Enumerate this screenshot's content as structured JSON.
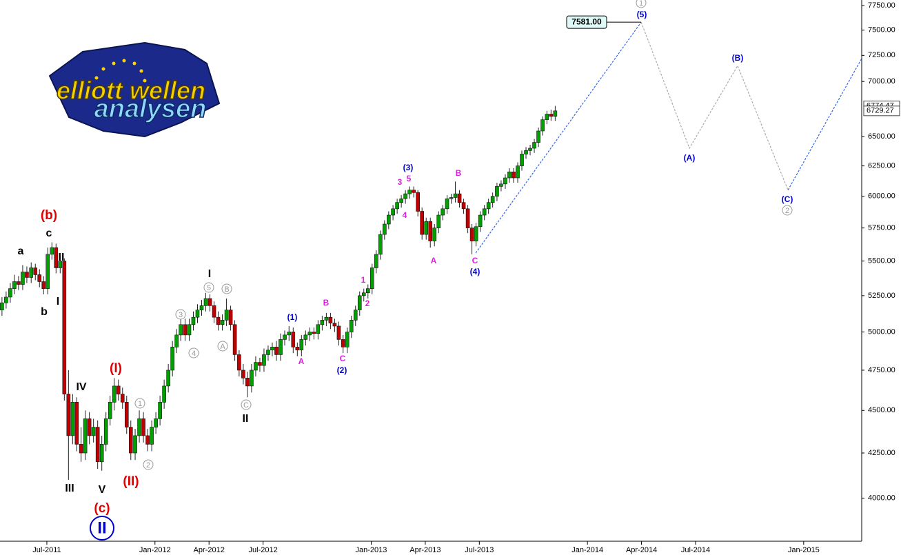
{
  "chart_data": {
    "type": "candlestick",
    "log_scale": true,
    "xlim": [
      3.4,
      51.22
    ],
    "ylim": [
      3775,
      7810
    ],
    "xticks": [
      {
        "value": 6,
        "label": "Jul-2011"
      },
      {
        "value": 12,
        "label": "Jan-2012"
      },
      {
        "value": 15,
        "label": "Apr-2012"
      },
      {
        "value": 18,
        "label": "Jul-2012"
      },
      {
        "value": 24,
        "label": "Jan-2013"
      },
      {
        "value": 27,
        "label": "Apr-2013"
      },
      {
        "value": 30,
        "label": "Jul-2013"
      },
      {
        "value": 36,
        "label": "Jan-2014"
      },
      {
        "value": 39,
        "label": "Apr-2014"
      },
      {
        "value": 42,
        "label": "Jul-2014"
      },
      {
        "value": 48,
        "label": "Jan-2015"
      }
    ],
    "yticks": [
      {
        "value": 4000,
        "label": "4000.00"
      },
      {
        "value": 4250,
        "label": "4250.00"
      },
      {
        "value": 4500,
        "label": "4500.00"
      },
      {
        "value": 4750,
        "label": "4750.00"
      },
      {
        "value": 5000,
        "label": "5000.00"
      },
      {
        "value": 5250,
        "label": "5250.00"
      },
      {
        "value": 5500,
        "label": "5500.00"
      },
      {
        "value": 5750,
        "label": "5750.00"
      },
      {
        "value": 6000,
        "label": "6000.00"
      },
      {
        "value": 6250,
        "label": "6250.00"
      },
      {
        "value": 6500,
        "label": "6500.00"
      },
      {
        "value": 7000,
        "label": "7000.00"
      },
      {
        "value": 7250,
        "label": "7250.00"
      },
      {
        "value": 7500,
        "label": "7500.00"
      },
      {
        "value": 7750,
        "label": "7750.00"
      }
    ],
    "up_color": "#00a000",
    "down_color": "#c00000",
    "x": [
      3.51,
      3.74,
      3.97,
      4.2,
      4.43,
      4.66,
      4.89,
      5.13,
      5.36,
      5.59,
      5.82,
      6.05,
      6.28,
      6.51,
      6.74,
      6.97,
      7.2,
      7.43,
      7.66,
      7.9,
      8.13,
      8.36,
      8.59,
      8.82,
      9.05,
      9.28,
      9.51,
      9.74,
      9.97,
      10.2,
      10.43,
      10.66,
      10.9,
      11.13,
      11.36,
      11.59,
      11.82,
      12.05,
      12.28,
      12.51,
      12.74,
      12.97,
      13.2,
      13.43,
      13.67,
      13.9,
      14.13,
      14.36,
      14.59,
      14.82,
      15.05,
      15.28,
      15.51,
      15.74,
      15.97,
      16.2,
      16.43,
      16.67,
      16.9,
      17.13,
      17.36,
      17.59,
      17.82,
      18.05,
      18.28,
      18.51,
      18.74,
      18.97,
      19.2,
      19.44,
      19.67,
      19.9,
      20.13,
      20.36,
      20.59,
      20.82,
      21.05,
      21.28,
      21.51,
      21.74,
      21.97,
      22.2,
      22.44,
      22.67,
      22.9,
      23.13,
      23.36,
      23.59,
      23.82,
      24.05,
      24.28,
      24.51,
      24.74,
      24.97,
      25.21,
      25.44,
      25.67,
      25.9,
      26.13,
      26.36,
      26.59,
      26.82,
      27.05,
      27.28,
      27.51,
      27.74,
      27.97,
      28.21,
      28.44,
      28.67,
      28.9,
      29.13,
      29.36,
      29.59,
      29.82,
      30.05,
      30.28,
      30.51,
      30.74,
      30.98,
      31.21,
      31.44,
      31.67,
      31.9,
      32.13,
      32.36,
      32.59,
      32.82,
      33.05,
      33.28,
      33.51,
      33.75,
      33.98,
      34.21
    ],
    "open": [
      5150,
      5200,
      5240,
      5300,
      5350,
      5330,
      5420,
      5380,
      5450,
      5400,
      5350,
      5300,
      5550,
      5600,
      5450,
      5500,
      4600,
      4350,
      4550,
      4300,
      4250,
      4450,
      4350,
      4400,
      4200,
      4300,
      4450,
      4550,
      4650,
      4600,
      4550,
      4400,
      4250,
      4350,
      4450,
      4350,
      4300,
      4400,
      4450,
      4550,
      4650,
      4750,
      4900,
      4980,
      5050,
      4980,
      5050,
      5100,
      5150,
      5180,
      5230,
      5180,
      5100,
      5050,
      5080,
      5150,
      5050,
      4850,
      4750,
      4700,
      4650,
      4750,
      4800,
      4780,
      4850,
      4880,
      4900,
      4850,
      4950,
      4980,
      5000,
      4900,
      4880,
      4950,
      4980,
      5000,
      4990,
      5050,
      5080,
      5100,
      5060,
      5040,
      4950,
      4900,
      5000,
      5080,
      5150,
      5250,
      5270,
      5300,
      5450,
      5550,
      5700,
      5780,
      5850,
      5900,
      5950,
      5980,
      6020,
      6050,
      6030,
      5880,
      5700,
      5800,
      5650,
      5750,
      5850,
      5900,
      5980,
      5990,
      6020,
      5950,
      5900,
      5750,
      5650,
      5760,
      5850,
      5900,
      5950,
      6000,
      6080,
      6100,
      6150,
      6200,
      6150,
      6250,
      6350,
      6380,
      6400,
      6450,
      6550,
      6650,
      6700,
      6680
    ],
    "high": [
      5240,
      5280,
      5340,
      5400,
      5390,
      5470,
      5460,
      5490,
      5480,
      5440,
      5390,
      5600,
      5640,
      5630,
      5540,
      5520,
      4750,
      4600,
      4580,
      4400,
      4500,
      4490,
      4450,
      4440,
      4350,
      4490,
      4590,
      4700,
      4690,
      4640,
      4590,
      4440,
      4390,
      4500,
      4490,
      4390,
      4440,
      4490,
      4590,
      4690,
      4790,
      4940,
      5020,
      5090,
      5090,
      5090,
      5140,
      5190,
      5220,
      5270,
      5260,
      5210,
      5140,
      5120,
      5230,
      5180,
      5080,
      4880,
      4790,
      4740,
      4790,
      4840,
      4830,
      4890,
      4910,
      4930,
      4940,
      4990,
      5010,
      5040,
      5030,
      4930,
      4980,
      5010,
      5030,
      5030,
      5080,
      5110,
      5130,
      5130,
      5090,
      5070,
      4980,
      5030,
      5110,
      5180,
      5280,
      5300,
      5330,
      5480,
      5580,
      5730,
      5810,
      5880,
      5930,
      5980,
      6010,
      6050,
      6080,
      6080,
      6050,
      5910,
      5830,
      5830,
      5780,
      5880,
      5930,
      6010,
      6020,
      6120,
      6050,
      5980,
      5930,
      5780,
      5790,
      5880,
      5930,
      5980,
      6030,
      6110,
      6130,
      6180,
      6230,
      6230,
      6280,
      6380,
      6410,
      6430,
      6480,
      6580,
      6680,
      6730,
      6740,
      6774.47
    ],
    "low": [
      5110,
      5160,
      5200,
      5260,
      5290,
      5290,
      5340,
      5340,
      5360,
      5310,
      5260,
      5260,
      5510,
      5410,
      5410,
      4560,
      4100,
      4300,
      4260,
      4200,
      4210,
      4300,
      4310,
      4160,
      4150,
      4260,
      4410,
      4500,
      4560,
      4510,
      4360,
      4210,
      4210,
      4310,
      4310,
      4260,
      4260,
      4360,
      4410,
      4510,
      4610,
      4710,
      4860,
      4940,
      4940,
      4940,
      5010,
      5060,
      5110,
      5140,
      5140,
      5060,
      5010,
      5010,
      5040,
      5010,
      4810,
      4710,
      4660,
      4580,
      4610,
      4710,
      4740,
      4740,
      4810,
      4840,
      4810,
      4810,
      4910,
      4940,
      4860,
      4840,
      4840,
      4910,
      4940,
      4950,
      4950,
      5010,
      5040,
      5020,
      5000,
      4910,
      4860,
      4860,
      4960,
      5040,
      5110,
      5210,
      5230,
      5260,
      5410,
      5510,
      5660,
      5740,
      5810,
      5860,
      5910,
      5940,
      5980,
      5990,
      5840,
      5660,
      5660,
      5600,
      5610,
      5710,
      5810,
      5860,
      5940,
      5950,
      5910,
      5860,
      5710,
      5550,
      5610,
      5720,
      5810,
      5860,
      5910,
      5960,
      6040,
      6060,
      6110,
      6110,
      6110,
      6210,
      6310,
      6340,
      6360,
      6410,
      6510,
      6610,
      6640,
      6640
    ],
    "close": [
      5200,
      5240,
      5300,
      5350,
      5330,
      5420,
      5380,
      5450,
      5400,
      5350,
      5300,
      5550,
      5600,
      5450,
      5500,
      4600,
      4350,
      4550,
      4300,
      4250,
      4450,
      4350,
      4400,
      4200,
      4300,
      4450,
      4550,
      4650,
      4600,
      4550,
      4400,
      4250,
      4350,
      4450,
      4350,
      4300,
      4400,
      4450,
      4550,
      4650,
      4750,
      4900,
      4980,
      5050,
      4980,
      5050,
      5100,
      5150,
      5180,
      5230,
      5180,
      5100,
      5050,
      5080,
      5150,
      5050,
      4850,
      4750,
      4700,
      4650,
      4750,
      4800,
      4780,
      4850,
      4880,
      4900,
      4850,
      4950,
      4980,
      5000,
      4900,
      4880,
      4950,
      4980,
      5000,
      4990,
      5050,
      5080,
      5100,
      5060,
      5040,
      4950,
      4900,
      5000,
      5080,
      5150,
      5250,
      5270,
      5300,
      5450,
      5550,
      5700,
      5780,
      5850,
      5900,
      5950,
      5980,
      6020,
      6050,
      6030,
      5880,
      5700,
      5800,
      5650,
      5750,
      5850,
      5900,
      5980,
      5990,
      6020,
      5950,
      5900,
      5750,
      5650,
      5760,
      5850,
      5900,
      5950,
      6000,
      6080,
      6100,
      6150,
      6200,
      6150,
      6250,
      6350,
      6380,
      6400,
      6450,
      6550,
      6650,
      6700,
      6680,
      6729.27
    ],
    "projections": [
      {
        "color": "#3366ee",
        "x": [
          29.8,
          38.98
        ],
        "values": [
          5560,
          7581
        ]
      },
      {
        "color": "#aaaaaa",
        "x": [
          38.98,
          41.66,
          44.33,
          47.13
        ],
        "values": [
          7581,
          6400,
          7150,
          6050
        ]
      },
      {
        "color": "#3366ee",
        "x": [
          47.13,
          51.22
        ],
        "values": [
          6050,
          7220
        ]
      }
    ],
    "target_label": {
      "value": 7581,
      "label": "7581.00"
    },
    "wave_labels": [
      {
        "color": "#e00000",
        "circled": false,
        "texts": [
          "(b)",
          "(c)",
          "(I)",
          "(II)"
        ]
      },
      {
        "color": "#000000",
        "circled": false,
        "texts": [
          "a",
          "c",
          "II",
          "b",
          "I",
          "IV",
          "III",
          "V",
          "I",
          "II"
        ]
      },
      {
        "color": "#0000cc",
        "circled": true,
        "texts": [
          "II"
        ]
      },
      {
        "color": "#999999",
        "circled": true,
        "texts": [
          "1",
          "2",
          "3",
          "4",
          "5",
          "B",
          "A",
          "C",
          "1",
          "2"
        ]
      },
      {
        "color": "#0000cc",
        "circled": false,
        "texts": [
          "(1)",
          "(2)",
          "(3)",
          "(4)",
          "(5)",
          "(A)",
          "(B)",
          "(C)"
        ]
      },
      {
        "color": "#e020e0",
        "circled": false,
        "texts": [
          "A",
          "B",
          "C",
          "1",
          "2",
          "3",
          "5",
          "4",
          "A",
          "B",
          "C"
        ]
      }
    ]
  },
  "logo": {
    "line1": "elliott wellen",
    "line2": "analysen"
  }
}
